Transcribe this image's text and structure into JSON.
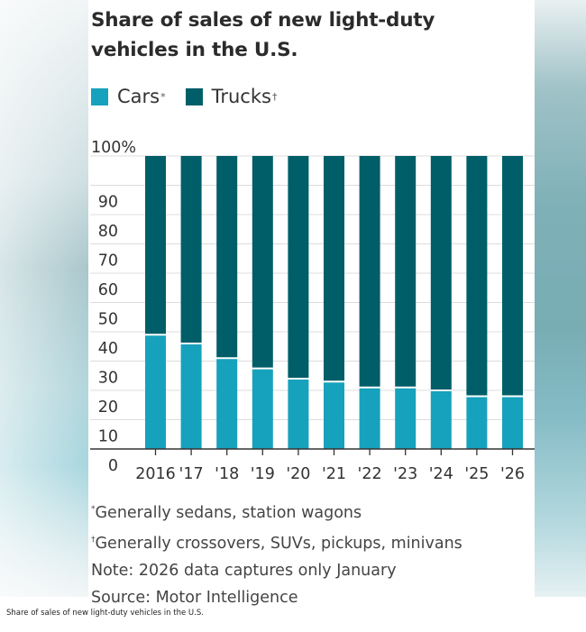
{
  "chart_data": {
    "type": "bar",
    "stacked": true,
    "title": "Share of sales of new light-duty vehicles in the U.S.",
    "categories": [
      "2016",
      "'17",
      "'18",
      "'19",
      "'20",
      "'21",
      "'22",
      "'23",
      "'24",
      "'25",
      "'26"
    ],
    "series": [
      {
        "name": "Cars",
        "marker": "*",
        "color": "#16a2bc",
        "values": [
          39,
          36,
          31,
          27.5,
          24,
          23,
          21,
          21,
          20,
          18,
          18
        ]
      },
      {
        "name": "Trucks",
        "marker": "†",
        "color": "#005e69",
        "values": [
          61,
          64,
          69,
          72.5,
          76,
          77,
          79,
          79,
          80,
          82,
          82
        ]
      }
    ],
    "xlabel": "",
    "ylabel": "",
    "ylim": [
      0,
      100
    ],
    "yticks": [
      0,
      10,
      20,
      30,
      40,
      50,
      60,
      70,
      80,
      90,
      100
    ],
    "ytick_labels": [
      "0",
      "10",
      "20",
      "30",
      "40",
      "50",
      "60",
      "70",
      "80",
      "90",
      "100%"
    ],
    "grid": true,
    "legend": "top-left"
  },
  "legend": {
    "cars_label": "Cars",
    "cars_marker": "*",
    "trucks_label": "Trucks",
    "trucks_marker": "†"
  },
  "notes": {
    "cars_marker": "*",
    "cars_note": "Generally sedans, station wagons",
    "trucks_marker": "†",
    "trucks_note": "Generally crossovers, SUVs, pickups, minivans",
    "note": "Note: 2026 data captures only January",
    "source": "Source: Motor Intelligence"
  },
  "caption": "Share of sales of new light-duty vehicles in the U.S."
}
